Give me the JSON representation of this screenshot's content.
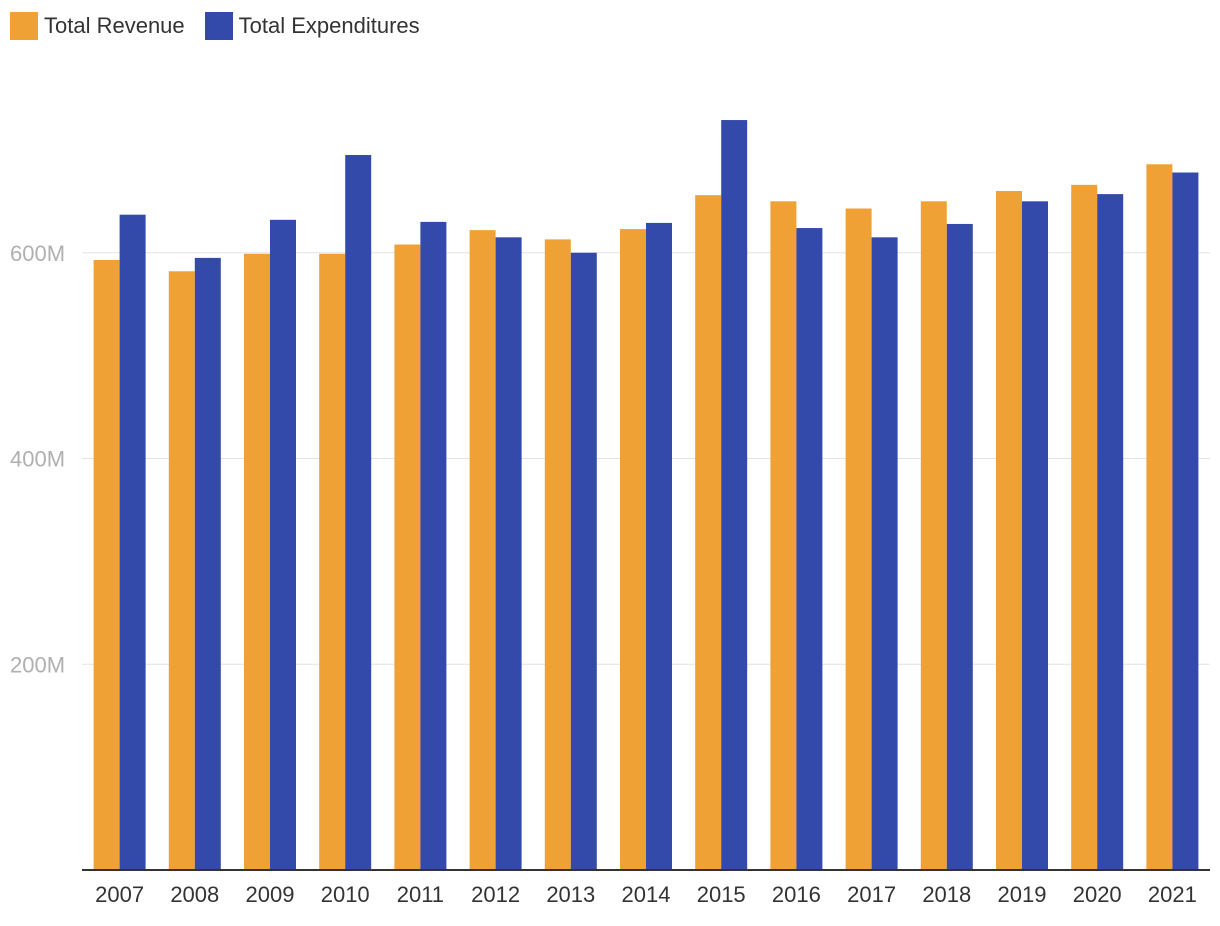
{
  "chart_data": {
    "type": "bar",
    "title": "",
    "xlabel": "",
    "ylabel": "",
    "categories": [
      "2007",
      "2008",
      "2009",
      "2010",
      "2011",
      "2012",
      "2013",
      "2014",
      "2015",
      "2016",
      "2017",
      "2018",
      "2019",
      "2020",
      "2021"
    ],
    "series": [
      {
        "name": "Total Revenue",
        "color": "#f0a136",
        "values": [
          593,
          582,
          599,
          599,
          608,
          622,
          613,
          623,
          656,
          650,
          643,
          650,
          660,
          666,
          686
        ]
      },
      {
        "name": "Total Expenditures",
        "color": "#334aab",
        "values": [
          637,
          595,
          632,
          695,
          630,
          615,
          600,
          629,
          729,
          624,
          615,
          628,
          650,
          657,
          678
        ]
      }
    ],
    "ylim": [
      0,
      800
    ],
    "yticks": [
      {
        "value": 200,
        "label": "200M"
      },
      {
        "value": 400,
        "label": "400M"
      },
      {
        "value": 600,
        "label": "600M"
      }
    ],
    "grid": true,
    "legend_position": "top-left"
  }
}
